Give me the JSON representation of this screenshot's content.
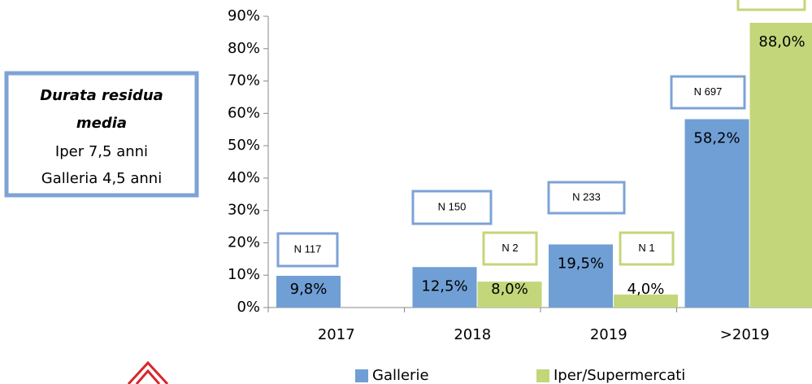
{
  "chart_data": {
    "type": "bar",
    "categories": [
      "2017",
      "2018",
      "2019",
      ">2019"
    ],
    "series": [
      {
        "name": "Gallerie",
        "color": "#6f9fd5",
        "values": [
          9.8,
          12.5,
          19.5,
          58.2
        ],
        "value_labels": [
          "9,8%",
          "12,5%",
          "19,5%",
          "58,2%"
        ],
        "annotations": [
          "N 117",
          "N 150",
          "N 233",
          "N 697"
        ]
      },
      {
        "name": "Iper/Supermercati",
        "color": "#c4d67a",
        "values": [
          null,
          8.0,
          4.0,
          88.0
        ],
        "value_labels": [
          null,
          "8,0%",
          "4,0%",
          "88,0%"
        ],
        "annotations": [
          null,
          "N 2",
          "N 1",
          null
        ]
      }
    ],
    "ylim": [
      0,
      90
    ],
    "yticks": [
      {
        "value": 0,
        "label": "0%"
      },
      {
        "value": 10,
        "label": "10%"
      },
      {
        "value": 20,
        "label": "20%"
      },
      {
        "value": 30,
        "label": "30%"
      },
      {
        "value": 40,
        "label": "40%"
      },
      {
        "value": 50,
        "label": "50%"
      },
      {
        "value": 60,
        "label": "60%"
      },
      {
        "value": 70,
        "label": "70%"
      },
      {
        "value": 80,
        "label": "80%"
      },
      {
        "value": 90,
        "label": "90%"
      }
    ],
    "note": {
      "title_lines": [
        "Durata residua",
        "media"
      ],
      "lines": [
        "Iper  7,5 anni",
        "Galleria 4,5 anni"
      ]
    }
  }
}
